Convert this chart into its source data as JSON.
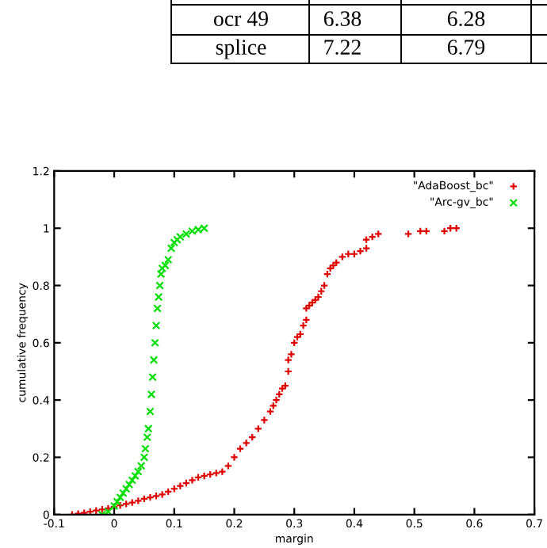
{
  "chart_data": {
    "type": "scatter",
    "xlabel": "margin",
    "ylabel": "cumulative frequency",
    "annotations": [
      "ocr 49",
      "6.38",
      "6.28",
      "splice",
      "7.22",
      "6.79"
    ],
    "xlim": [
      -0.1,
      0.7
    ],
    "xticks": [
      {
        "value": -0.1,
        "label": "-0.1"
      },
      0,
      0.1,
      0.2,
      0.3,
      0.4,
      0.5,
      0.6,
      0.7
    ],
    "ylim": [
      0,
      1.2
    ],
    "yticks": [
      0,
      0.2,
      0.4,
      0.6,
      0.8,
      1,
      1.2
    ],
    "grid": false,
    "legend": "top right",
    "series": [
      {
        "name": "\"AdaBoost_bc\"",
        "color": "#e00000",
        "marker": "cross",
        "x": [
          -0.07,
          -0.06,
          -0.05,
          -0.04,
          -0.03,
          -0.02,
          -0.01,
          0.0,
          0.01,
          0.02,
          0.03,
          0.04,
          0.05,
          0.06,
          0.07,
          0.08,
          0.09,
          0.1,
          0.11,
          0.12,
          0.13,
          0.14,
          0.15,
          0.16,
          0.17,
          0.18,
          0.19,
          0.2,
          0.21,
          0.22,
          0.23,
          0.24,
          0.25,
          0.26,
          0.265,
          0.27,
          0.275,
          0.28,
          0.285,
          0.29,
          0.29,
          0.295,
          0.3,
          0.305,
          0.31,
          0.315,
          0.32,
          0.32,
          0.325,
          0.33,
          0.335,
          0.34,
          0.345,
          0.35,
          0.355,
          0.36,
          0.365,
          0.37,
          0.38,
          0.39,
          0.4,
          0.41,
          0.42,
          0.42,
          0.43,
          0.44,
          0.49,
          0.51,
          0.52,
          0.55,
          0.56,
          0.57
        ],
        "values": [
          0.0,
          0.003,
          0.006,
          0.01,
          0.014,
          0.018,
          0.022,
          0.027,
          0.032,
          0.037,
          0.042,
          0.048,
          0.055,
          0.06,
          0.065,
          0.07,
          0.08,
          0.09,
          0.1,
          0.11,
          0.12,
          0.13,
          0.135,
          0.14,
          0.145,
          0.15,
          0.17,
          0.2,
          0.23,
          0.25,
          0.27,
          0.3,
          0.33,
          0.36,
          0.38,
          0.4,
          0.42,
          0.44,
          0.45,
          0.5,
          0.54,
          0.56,
          0.6,
          0.62,
          0.63,
          0.66,
          0.68,
          0.72,
          0.73,
          0.74,
          0.75,
          0.76,
          0.78,
          0.8,
          0.84,
          0.86,
          0.87,
          0.88,
          0.9,
          0.91,
          0.91,
          0.92,
          0.93,
          0.96,
          0.97,
          0.98,
          0.98,
          0.99,
          0.99,
          0.99,
          1.0,
          1.0
        ]
      },
      {
        "name": "\"Arc-gv_bc\"",
        "color": "#00e000",
        "marker": "x",
        "x": [
          -0.02,
          -0.01,
          0.0,
          0.005,
          0.01,
          0.015,
          0.02,
          0.025,
          0.03,
          0.035,
          0.04,
          0.045,
          0.05,
          0.052,
          0.055,
          0.057,
          0.06,
          0.062,
          0.064,
          0.066,
          0.068,
          0.07,
          0.072,
          0.074,
          0.076,
          0.078,
          0.08,
          0.085,
          0.09,
          0.095,
          0.1,
          0.105,
          0.11,
          0.12,
          0.13,
          0.14,
          0.15
        ],
        "values": [
          0.0,
          0.01,
          0.03,
          0.045,
          0.06,
          0.075,
          0.09,
          0.105,
          0.12,
          0.135,
          0.15,
          0.17,
          0.2,
          0.23,
          0.27,
          0.3,
          0.36,
          0.42,
          0.48,
          0.54,
          0.6,
          0.66,
          0.72,
          0.76,
          0.8,
          0.84,
          0.86,
          0.87,
          0.89,
          0.93,
          0.95,
          0.96,
          0.97,
          0.98,
          0.99,
          0.995,
          1.0
        ]
      }
    ]
  }
}
